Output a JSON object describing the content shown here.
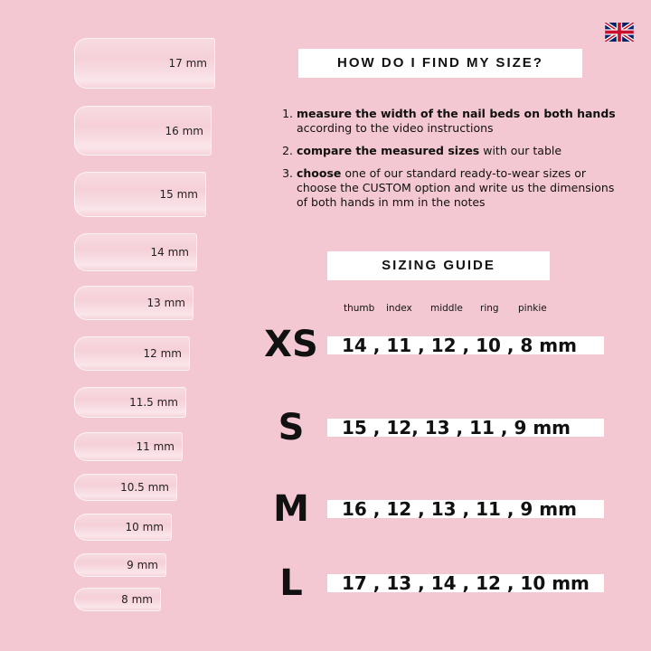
{
  "nails": [
    "17 mm",
    "16 mm",
    "15 mm",
    "14 mm",
    "13 mm",
    "12 mm",
    "11.5 mm",
    "11 mm",
    "10.5 mm",
    "10 mm",
    "9 mm",
    "8 mm"
  ],
  "title": "HOW DO I FIND MY SIZE?",
  "steps": [
    {
      "bold": "measure the width of the nail beds on both hands",
      "rest": " according to the video instructions"
    },
    {
      "bold": "compare the measured sizes",
      "rest": " with our table"
    },
    {
      "bold": "choose",
      "rest": " one of our standard ready-to-wear sizes or choose the CUSTOM option and write us the dimensions of both hands in mm in the notes"
    }
  ],
  "guide_title": "SIZING GUIDE",
  "fingers": [
    "thumb",
    "index",
    "middle",
    "ring",
    "pinkie"
  ],
  "sizes": [
    {
      "label": "XS",
      "values": "14 , 11 , 12 , 10 , 8 mm"
    },
    {
      "label": "S",
      "values": "15 , 12, 13 , 11 , 9 mm"
    },
    {
      "label": "M",
      "values": "16 , 12 , 13 , 11 , 9 mm"
    },
    {
      "label": "L",
      "values": "17 , 13 , 14 , 12 , 10 mm"
    }
  ],
  "flag_icon": "uk-flag-icon",
  "background": "#f4c8d2"
}
